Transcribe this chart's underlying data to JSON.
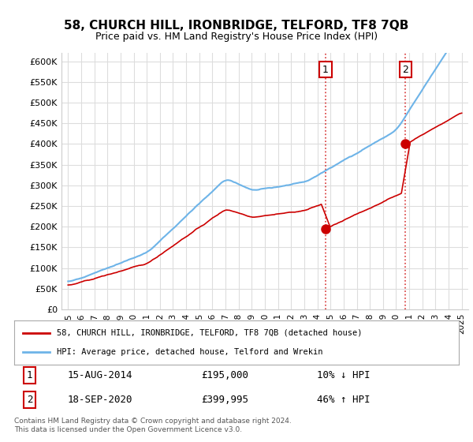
{
  "title": "58, CHURCH HILL, IRONBRIDGE, TELFORD, TF8 7QB",
  "subtitle": "Price paid vs. HM Land Registry's House Price Index (HPI)",
  "ylabel_fmt": "£{0}K",
  "ylim": [
    0,
    620000
  ],
  "yticks": [
    0,
    50000,
    100000,
    150000,
    200000,
    250000,
    300000,
    350000,
    400000,
    450000,
    500000,
    550000,
    600000
  ],
  "xlim_years": [
    1994.5,
    2025.5
  ],
  "sale1_year": 2014.62,
  "sale1_price": 195000,
  "sale1_label": "1",
  "sale2_year": 2020.72,
  "sale2_price": 399995,
  "sale2_label": "2",
  "vline1_year": 2014.62,
  "vline2_year": 2020.72,
  "legend_entry1": "58, CHURCH HILL, IRONBRIDGE, TELFORD, TF8 7QB (detached house)",
  "legend_entry2": "HPI: Average price, detached house, Telford and Wrekin",
  "table_row1": [
    "1",
    "15-AUG-2014",
    "£195,000",
    "10% ↓ HPI"
  ],
  "table_row2": [
    "2",
    "18-SEP-2020",
    "£399,995",
    "46% ↑ HPI"
  ],
  "footnote": "Contains HM Land Registry data © Crown copyright and database right 2024.\nThis data is licensed under the Open Government Licence v3.0.",
  "hpi_color": "#6eb4e8",
  "sale_color": "#cc0000",
  "vline_color": "#cc0000",
  "background_color": "#ffffff",
  "grid_color": "#dddddd"
}
